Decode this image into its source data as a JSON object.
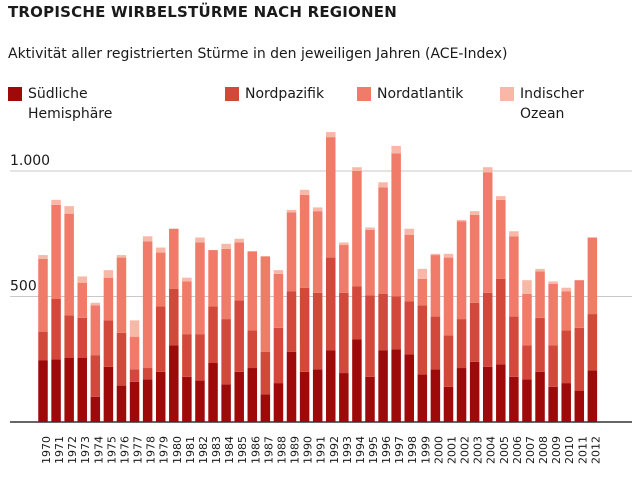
{
  "title": "TROPISCHE WIRBELSTÜRME NACH REGIONEN",
  "subtitle": "Aktivität aller registrierten Stürme in den jeweiligen Jahren (ACE-Index)",
  "chart_data": {
    "type": "bar",
    "stacked": true,
    "categories": [
      "1970",
      "1971",
      "1972",
      "1973",
      "1974",
      "1975",
      "1976",
      "1977",
      "1978",
      "1979",
      "1980",
      "1981",
      "1982",
      "1983",
      "1984",
      "1985",
      "1986",
      "1987",
      "1988",
      "1989",
      "1990",
      "1991",
      "1992",
      "1993",
      "1994",
      "1995",
      "1996",
      "1997",
      "1998",
      "1999",
      "2000",
      "2001",
      "2002",
      "2003",
      "2004",
      "2005",
      "2006",
      "2007",
      "2008",
      "2009",
      "2010",
      "2011",
      "2012"
    ],
    "series": [
      {
        "name": "Südliche Hemisphäre",
        "color": "#9e0a0a",
        "values": [
          245,
          250,
          255,
          255,
          100,
          220,
          145,
          160,
          170,
          200,
          305,
          180,
          165,
          235,
          150,
          200,
          215,
          110,
          155,
          280,
          200,
          210,
          285,
          195,
          330,
          180,
          285,
          290,
          270,
          190,
          210,
          140,
          215,
          240,
          220,
          230,
          180,
          170,
          200,
          140,
          155,
          125,
          205
        ]
      },
      {
        "name": "Nordpazifik",
        "color": "#d2483a",
        "values": [
          115,
          240,
          170,
          160,
          165,
          185,
          210,
          50,
          45,
          260,
          225,
          170,
          185,
          225,
          260,
          285,
          150,
          170,
          220,
          240,
          335,
          305,
          370,
          320,
          210,
          325,
          225,
          210,
          210,
          275,
          210,
          205,
          195,
          235,
          295,
          340,
          240,
          135,
          215,
          165,
          210,
          250,
          225
        ]
      },
      {
        "name": "Nordatlantik",
        "color": "#ef7b68",
        "values": [
          290,
          375,
          405,
          140,
          200,
          170,
          300,
          130,
          505,
          215,
          240,
          210,
          365,
          225,
          280,
          230,
          315,
          380,
          215,
          315,
          370,
          325,
          480,
          190,
          460,
          260,
          425,
          570,
          265,
          105,
          245,
          310,
          390,
          350,
          480,
          315,
          320,
          205,
          185,
          245,
          155,
          190,
          305
        ]
      },
      {
        "name": "Indischer\nOzean",
        "color": "#f8b7a7",
        "values": [
          15,
          20,
          30,
          25,
          10,
          30,
          10,
          65,
          20,
          20,
          0,
          15,
          20,
          0,
          20,
          15,
          0,
          0,
          15,
          10,
          20,
          15,
          20,
          10,
          15,
          10,
          20,
          30,
          25,
          40,
          5,
          15,
          5,
          15,
          20,
          15,
          20,
          55,
          10,
          10,
          15,
          0,
          0
        ]
      }
    ],
    "ytick_labels": [
      "500",
      "1.000"
    ],
    "yticks": [
      500,
      1000
    ],
    "ylim": [
      0,
      1150
    ]
  }
}
